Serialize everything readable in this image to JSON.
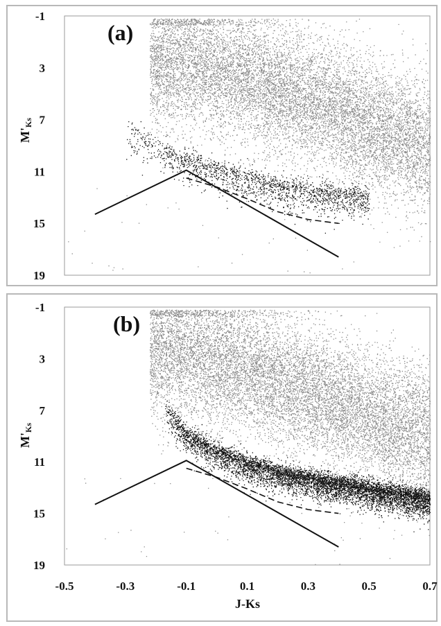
{
  "chart_data": [
    {
      "type": "scatter",
      "panel_label": "(a)",
      "xlabel": "J-Ks",
      "ylabel": "M'",
      "ylabel_sub": "Ks",
      "xlim": [
        -0.5,
        0.7
      ],
      "ylim": [
        19,
        -1
      ],
      "y_ticks": [
        "-1",
        "3",
        "7",
        "11",
        "15",
        "19"
      ],
      "x_ticks": [],
      "y_inverted": true,
      "grid": false,
      "legend": "none",
      "colors": {
        "dense_cloud": "#8a8a8a",
        "sequence_points": "#111111",
        "lines": "#111111"
      },
      "series": [
        {
          "role": "dense-cloud",
          "style": "gray-points",
          "count": 11000,
          "ridge": {
            "x": [
              -0.1,
              0.1,
              0.3,
              0.5,
              0.7
            ],
            "y": [
              2.5,
              3.8,
              5.5,
              7.5,
              9.0
            ]
          },
          "spread": 2.5
        },
        {
          "role": "sequence-band",
          "style": "black-points",
          "count": 1700,
          "ridge": {
            "x": [
              -0.3,
              -0.2,
              -0.1,
              0.0,
              0.1,
              0.2,
              0.3,
              0.4,
              0.5
            ],
            "y": [
              8.0,
              9.2,
              10.2,
              11.0,
              11.7,
              12.2,
              12.6,
              12.9,
              13.1
            ]
          },
          "spread": 0.8
        },
        {
          "role": "outlier-points",
          "style": "gray-points",
          "count": 40,
          "x_range": [
            -0.5,
            0.7
          ],
          "y_range": [
            12,
            19
          ]
        },
        {
          "role": "solid-boundary",
          "style": "solid-line",
          "x": [
            -0.4,
            -0.1,
            0.4
          ],
          "y": [
            14.3,
            10.9,
            17.6
          ]
        },
        {
          "role": "dashed-curve",
          "style": "dashed-line",
          "x": [
            -0.1,
            0.0,
            0.1,
            0.2,
            0.3,
            0.4
          ],
          "y": [
            11.5,
            12.2,
            13.1,
            14.1,
            14.7,
            15.0
          ]
        }
      ]
    },
    {
      "type": "scatter",
      "panel_label": "(b)",
      "xlabel": "J-Ks",
      "ylabel": "M'",
      "ylabel_sub": "Ks",
      "xlim": [
        -0.5,
        0.7
      ],
      "ylim": [
        19,
        -1
      ],
      "y_ticks": [
        "-1",
        "3",
        "7",
        "11",
        "15",
        "19"
      ],
      "x_ticks": [
        "-0.5",
        "-0.3",
        "-0.1",
        "0.1",
        "0.3",
        "0.5",
        "0.7"
      ],
      "y_inverted": true,
      "grid": false,
      "legend": "none",
      "colors": {
        "dense_cloud": "#8a8a8a",
        "sequence_points": "#111111",
        "lines": "#111111"
      },
      "series": [
        {
          "role": "dense-cloud",
          "style": "gray-points",
          "count": 11000,
          "ridge": {
            "x": [
              -0.1,
              0.1,
              0.3,
              0.5,
              0.7
            ],
            "y": [
              2.5,
              3.8,
              5.5,
              7.5,
              9.0
            ]
          },
          "spread": 2.5
        },
        {
          "role": "sequence-band",
          "style": "black-points",
          "count": 6500,
          "ridge": {
            "x": [
              -0.17,
              -0.1,
              0.0,
              0.1,
              0.2,
              0.3,
              0.4,
              0.5,
              0.6,
              0.7
            ],
            "y": [
              7.0,
              9.0,
              10.3,
              11.2,
              11.9,
              12.4,
              12.8,
              13.2,
              13.6,
              14.0
            ]
          },
          "spread": 0.7
        },
        {
          "role": "outlier-points",
          "style": "gray-points",
          "count": 40,
          "x_range": [
            -0.5,
            0.7
          ],
          "y_range": [
            12,
            19
          ]
        },
        {
          "role": "solid-boundary",
          "style": "solid-line",
          "x": [
            -0.4,
            -0.1,
            0.4
          ],
          "y": [
            14.3,
            10.9,
            17.6
          ]
        },
        {
          "role": "dashed-curve",
          "style": "dashed-line",
          "x": [
            -0.1,
            0.0,
            0.1,
            0.2,
            0.3,
            0.4
          ],
          "y": [
            11.5,
            12.2,
            13.1,
            14.1,
            14.7,
            15.0
          ]
        }
      ]
    }
  ]
}
